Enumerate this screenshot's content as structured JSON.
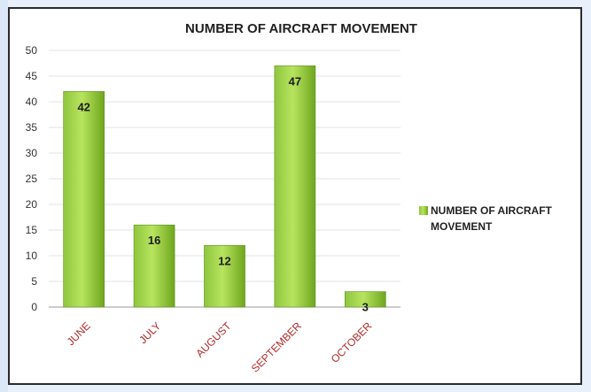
{
  "chart_data": {
    "type": "bar",
    "title": "NUMBER OF AIRCRAFT MOVEMENT",
    "categories": [
      "JUNE",
      "JULY",
      "AUGUST",
      "SEPTEMBER",
      "OCTOBER"
    ],
    "series": [
      {
        "name": "NUMBER OF AIRCRAFT MOVEMENT",
        "values": [
          42,
          16,
          12,
          47,
          3
        ]
      }
    ],
    "data_labels": [
      "42",
      "16",
      "12",
      "47",
      "3"
    ],
    "y_ticks": [
      "0",
      "5",
      "10",
      "15",
      "20",
      "25",
      "30",
      "35",
      "40",
      "45",
      "50"
    ],
    "ylim": [
      0,
      50
    ],
    "grid": true,
    "legend_position": "right",
    "legend_lines": [
      "NUMBER OF AIRCRAFT",
      "MOVEMENT"
    ],
    "colors": {
      "bar_top": "#b5e45b",
      "bar_bottom": "#6ea61e",
      "category_text": "#b22a2a",
      "background": "#e8f1fb"
    }
  }
}
